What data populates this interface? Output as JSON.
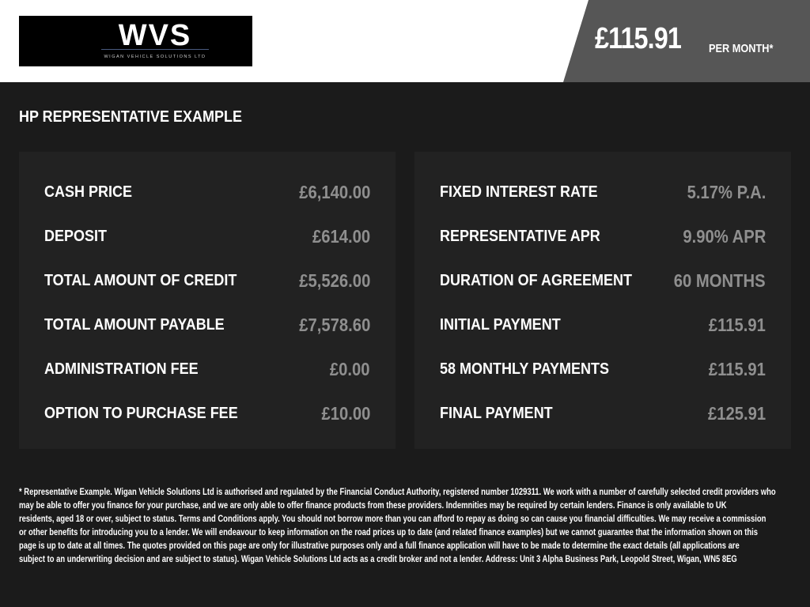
{
  "header": {
    "logo": {
      "mark": "WVS",
      "tagline": "WIGAN VEHICLE SOLUTIONS LTD"
    },
    "monthly_price": "£115.91",
    "per_month_label": "PER MONTH*"
  },
  "section_title": "HP REPRESENTATIVE EXAMPLE",
  "left_panel": [
    {
      "label": "CASH PRICE",
      "value": "£6,140.00"
    },
    {
      "label": "DEPOSIT",
      "value": "£614.00"
    },
    {
      "label": "TOTAL AMOUNT OF CREDIT",
      "value": "£5,526.00"
    },
    {
      "label": "TOTAL AMOUNT PAYABLE",
      "value": "£7,578.60"
    },
    {
      "label": "ADMINISTRATION FEE",
      "value": "£0.00"
    },
    {
      "label": "OPTION TO PURCHASE FEE",
      "value": "£10.00"
    }
  ],
  "right_panel": [
    {
      "label": "FIXED INTEREST RATE",
      "value": "5.17% P.A."
    },
    {
      "label": "REPRESENTATIVE APR",
      "value": "9.90% APR"
    },
    {
      "label": "DURATION OF AGREEMENT",
      "value": "60 MONTHS"
    },
    {
      "label": "INITIAL PAYMENT",
      "value": "£115.91"
    },
    {
      "label": "58 MONTHLY PAYMENTS",
      "value": "£115.91"
    },
    {
      "label": "FINAL PAYMENT",
      "value": "£125.91"
    }
  ],
  "disclaimer_lines": [
    "* Representative Example. Wigan Vehicle Solutions Ltd is authorised and regulated by the Financial Conduct Authority, registered number 1029311. We work with a number of carefully selected credit providers who",
    "may be able to offer you finance for your purchase, and we are only able to offer finance products from these providers. Indemnities may be required by certain lenders. Finance is only available to UK",
    "residents, aged 18 or over, subject to status. Terms and Conditions apply. You should not borrow more than you can afford to repay as doing so can cause you financial difficulties. We may receive a commission",
    "or other benefits for introducing you to a lender. We will endeavour to keep information on the road prices up to date (and related finance examples) but we cannot guarantee that the information shown on this",
    "page is up to date at all times. The quotes provided on this page are only for illustrative purposes only and a full finance application will have to be made to determine the exact details (all applications are",
    "subject to an underwriting decision and are subject to status). Wigan Vehicle Solutions Ltd acts as a credit broker and not a lender. Address: Unit 3 Alpha Business Park, Leopold Street, Wigan, WN5 8EG"
  ],
  "colors": {
    "background": "#1b1b1b",
    "panel": "#222222",
    "price_band": "#565656",
    "value_text": "#8f8f8f"
  }
}
